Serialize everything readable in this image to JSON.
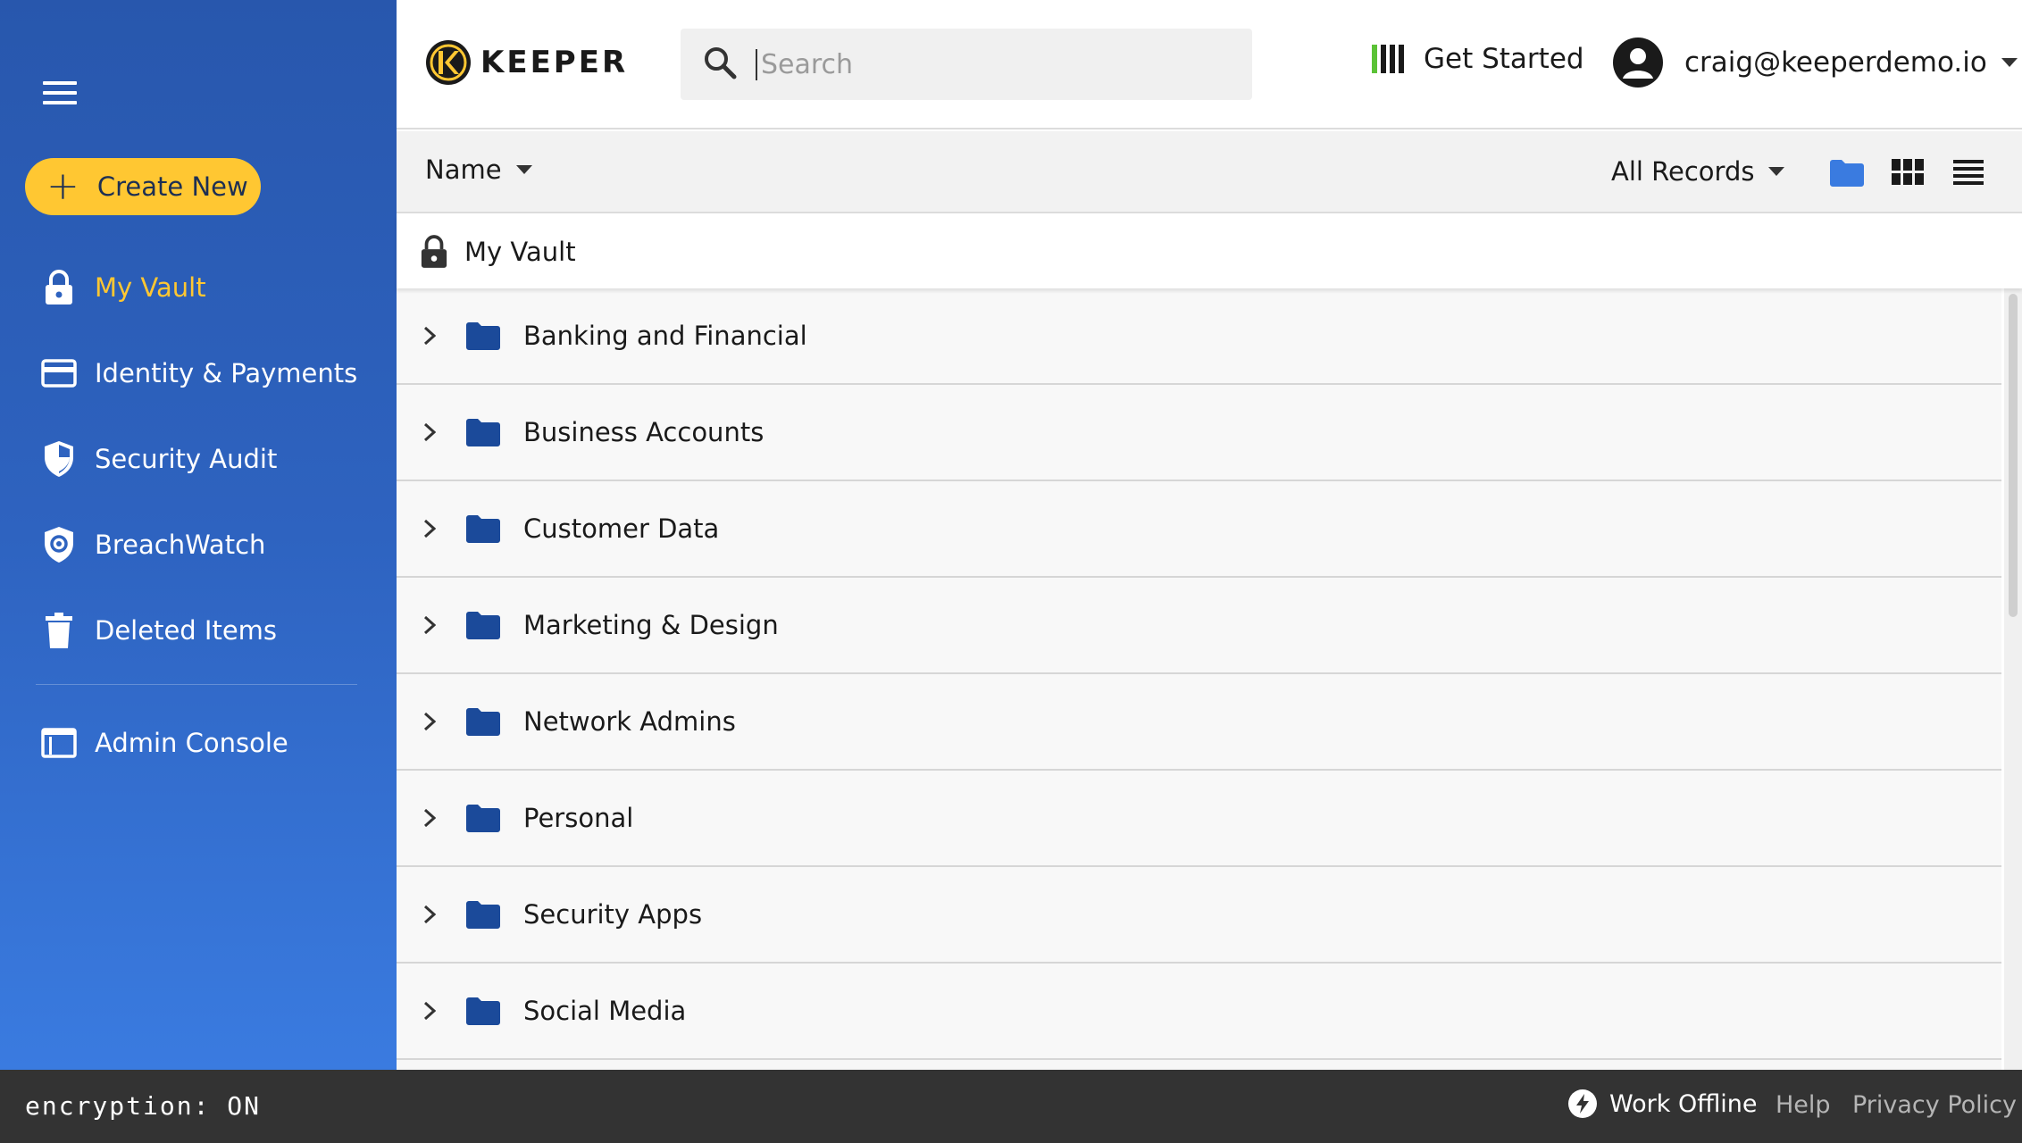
{
  "sidebar": {
    "menu_icon": "hamburger-icon",
    "create_new_label": "Create New",
    "items": [
      {
        "label": "My Vault",
        "icon": "lock-icon",
        "active": true
      },
      {
        "label": "Identity & Payments",
        "icon": "card-icon",
        "active": false
      },
      {
        "label": "Security Audit",
        "icon": "shield-icon",
        "active": false
      },
      {
        "label": "BreachWatch",
        "icon": "breachwatch-icon",
        "active": false
      },
      {
        "label": "Deleted Items",
        "icon": "trash-icon",
        "active": false
      },
      {
        "label": "Admin Console",
        "icon": "console-icon",
        "active": false
      }
    ]
  },
  "header": {
    "logo_text": "KEEPER",
    "search_placeholder": "Search",
    "get_started_label": "Get Started",
    "account_email": "craig@keeperdemo.io"
  },
  "toolbar": {
    "sort_label": "Name",
    "filter_label": "All Records"
  },
  "breadcrumb": {
    "label": "My Vault"
  },
  "folders": [
    {
      "name": "Banking and Financial"
    },
    {
      "name": "Business Accounts"
    },
    {
      "name": "Customer Data"
    },
    {
      "name": "Marketing & Design"
    },
    {
      "name": "Network Admins"
    },
    {
      "name": "Personal"
    },
    {
      "name": "Security Apps"
    },
    {
      "name": "Social Media"
    }
  ],
  "footer": {
    "encryption_text": "encryption: ON",
    "work_offline_label": "Work Offline",
    "help_label": "Help",
    "privacy_label": "Privacy Policy"
  },
  "colors": {
    "sidebar_blue": "#2e63c0",
    "accent_yellow": "#ffc732",
    "folder_blue": "#1b4a9a",
    "footer_dark": "#333333"
  }
}
